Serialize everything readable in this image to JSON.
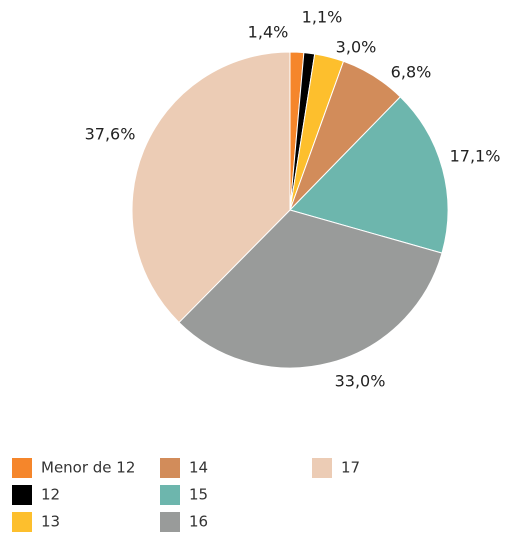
{
  "chart_data": {
    "type": "pie",
    "categories": [
      "Menor de 12",
      "12",
      "13",
      "14",
      "15",
      "16",
      "17"
    ],
    "values": [
      1.4,
      1.1,
      3.0,
      6.8,
      17.1,
      33.0,
      37.6
    ],
    "value_labels": [
      "1,4%",
      "1,1%",
      "3,0%",
      "6,8%",
      "17,1%",
      "33,0%",
      "37,6%"
    ],
    "colors": [
      "#f5862b",
      "#000000",
      "#fdbf2d",
      "#d28c5a",
      "#6db6ad",
      "#999b9a",
      "#ecccb5"
    ],
    "legend": "bottom"
  }
}
